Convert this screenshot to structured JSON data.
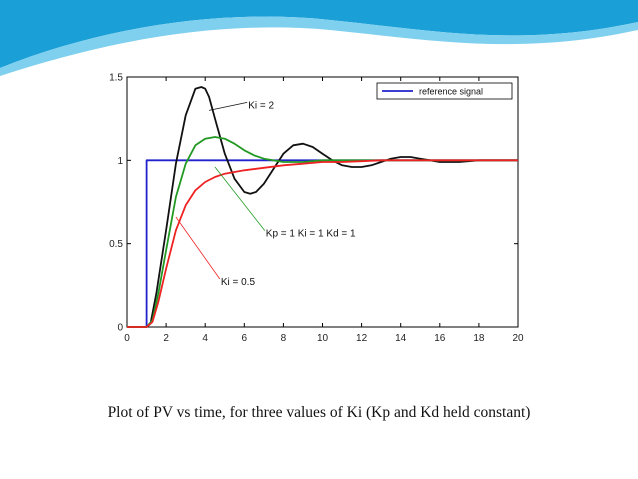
{
  "slide": {
    "caption": "Plot of PV vs time, for three values of Ki (Kp and Kd held constant)",
    "header_colors": [
      "#1a9fd6",
      "#7fd0ef",
      "#cfeefa"
    ]
  },
  "chart_data": {
    "type": "line",
    "title": "",
    "xlabel": "",
    "ylabel": "",
    "xlim": [
      0,
      20
    ],
    "ylim": [
      0,
      1.5
    ],
    "xticks": [
      "0",
      "2",
      "4",
      "6",
      "8",
      "10",
      "12",
      "14",
      "16",
      "18",
      "20"
    ],
    "yticks": [
      "0",
      "0.5",
      "1",
      "1.5"
    ],
    "grid": false,
    "legend": {
      "placement": "top-right",
      "entries": [
        "reference signal"
      ]
    },
    "series": [
      {
        "name": "reference signal",
        "color": "#2222cc",
        "x": [
          0,
          1,
          1,
          20
        ],
        "y": [
          0,
          0,
          1,
          1
        ]
      },
      {
        "color": "#111111",
        "x": [
          0,
          1,
          1.2,
          1.5,
          2,
          2.5,
          3,
          3.5,
          3.8,
          4,
          4.2,
          4.5,
          5,
          5.5,
          6,
          6.3,
          6.6,
          7,
          7.5,
          8,
          8.5,
          9,
          9.5,
          10,
          10.5,
          11,
          11.5,
          12,
          12.5,
          13,
          13.5,
          14,
          14.5,
          15,
          15.5,
          16,
          17,
          18,
          19,
          20
        ],
        "y": [
          0,
          0,
          0.02,
          0.2,
          0.58,
          0.98,
          1.27,
          1.43,
          1.44,
          1.43,
          1.38,
          1.25,
          1.04,
          0.89,
          0.81,
          0.8,
          0.81,
          0.86,
          0.95,
          1.04,
          1.09,
          1.1,
          1.08,
          1.04,
          1.0,
          0.97,
          0.96,
          0.96,
          0.97,
          0.99,
          1.01,
          1.02,
          1.02,
          1.01,
          1.0,
          0.99,
          0.99,
          1.0,
          1.0,
          1.0
        ]
      },
      {
        "color": "#229922",
        "x": [
          0,
          1,
          1.3,
          1.6,
          2,
          2.5,
          3,
          3.5,
          4,
          4.5,
          5,
          5.5,
          6,
          6.5,
          7,
          8,
          9,
          10,
          11,
          12,
          14,
          16,
          18,
          20
        ],
        "y": [
          0,
          0,
          0.04,
          0.2,
          0.46,
          0.78,
          0.98,
          1.09,
          1.13,
          1.14,
          1.13,
          1.1,
          1.06,
          1.03,
          1.01,
          0.99,
          0.99,
          1.0,
          1.0,
          1.0,
          1.0,
          1.0,
          1.0,
          1.0
        ]
      },
      {
        "color": "#ee2222",
        "x": [
          0,
          1,
          1.3,
          1.6,
          2,
          2.5,
          3,
          3.5,
          4,
          4.5,
          5,
          6,
          7,
          8,
          9,
          10,
          11,
          12,
          13,
          14,
          15,
          16,
          18,
          20
        ],
        "y": [
          0,
          0,
          0.03,
          0.15,
          0.35,
          0.58,
          0.73,
          0.82,
          0.87,
          0.9,
          0.92,
          0.94,
          0.955,
          0.97,
          0.98,
          0.99,
          0.99,
          0.995,
          1.0,
          1.0,
          1.0,
          1.0,
          1.0,
          1.0
        ]
      }
    ],
    "annotations": [
      {
        "text": "Ki = 2",
        "x": 6.2,
        "y": 1.33,
        "line_to": [
          4.2,
          1.3
        ]
      },
      {
        "text": "Kp = 1  Ki = 1  Kd = 1",
        "x": 7.1,
        "y": 0.56,
        "line_to": [
          4.5,
          0.96
        ]
      },
      {
        "text": "Ki = 0.5",
        "x": 4.8,
        "y": 0.27,
        "line_to": [
          2.5,
          0.66
        ]
      }
    ]
  }
}
